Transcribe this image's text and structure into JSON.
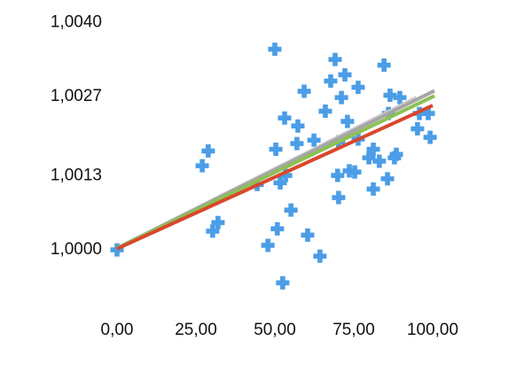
{
  "chart_data": {
    "type": "scatter",
    "xlim": [
      0,
      100
    ],
    "xticks": [
      {
        "value": 0,
        "label": "0,00"
      },
      {
        "value": 25,
        "label": "25,00"
      },
      {
        "value": 50,
        "label": "50,00"
      },
      {
        "value": 75,
        "label": "75,00"
      },
      {
        "value": 100,
        "label": "100,00"
      }
    ],
    "ylim": [
      0.9993,
      1.0041
    ],
    "yticks": [
      {
        "value": 1.0,
        "label": "1,0000"
      },
      {
        "value": 1.0013,
        "label": "1,0013"
      },
      {
        "value": 1.0027,
        "label": "1,0027"
      },
      {
        "value": 1.004,
        "label": "1,0040"
      }
    ],
    "grid": false,
    "series": [
      {
        "type": "scatter",
        "color": "#4a9de6",
        "x": [
          0,
          50.0,
          69.1,
          84.6,
          72.2,
          67.7,
          76.4,
          59.3,
          71.1,
          86.5,
          89.6,
          66.0,
          53.1,
          73.0,
          57.3,
          86.0,
          95.8,
          98.6,
          95.2,
          99.2,
          62.4,
          57.0,
          50.3,
          28.9,
          70.2,
          76.4,
          81.2,
          88.5,
          87.9,
          83.1,
          79.8,
          27.0,
          53.4,
          51.7,
          44.4,
          69.9,
          73.6,
          75.3,
          85.7,
          81.2,
          70.2,
          55.1,
          32.0,
          30.3,
          50.8,
          60.4,
          47.8,
          64.3,
          52.5
        ],
        "values": [
          1.0,
          1.00353,
          1.00335,
          1.00325,
          1.00308,
          1.00297,
          1.00286,
          1.00279,
          1.00268,
          1.00272,
          1.00268,
          1.00244,
          1.00232,
          1.00226,
          1.00218,
          1.0024,
          1.0024,
          1.0024,
          1.00213,
          1.00198,
          1.00193,
          1.00187,
          1.00177,
          1.00174,
          1.0019,
          1.00195,
          1.00177,
          1.00168,
          1.00162,
          1.00156,
          1.00162,
          1.00148,
          1.00131,
          1.00118,
          1.00115,
          1.00131,
          1.00139,
          1.00137,
          1.00125,
          1.00107,
          1.00092,
          1.0007,
          1.00048,
          1.00033,
          1.00037,
          1.00026,
          1.00008,
          0.99989,
          0.99942
        ]
      },
      {
        "type": "line",
        "color": "#c9c9c9",
        "x": [
          0,
          94.9
        ],
        "values": [
          1.00003,
          1.00268
        ]
      },
      {
        "type": "line",
        "color": "#a5a5a5",
        "x": [
          0,
          100.6
        ],
        "values": [
          1.00003,
          1.0028
        ]
      },
      {
        "type": "line",
        "color": "#8cc152",
        "x": [
          0,
          100.6
        ],
        "values": [
          1.00003,
          1.00271
        ]
      },
      {
        "type": "line",
        "color": "#d9472b",
        "x": [
          0,
          100
        ],
        "values": [
          1.00002,
          1.00254
        ]
      }
    ]
  }
}
